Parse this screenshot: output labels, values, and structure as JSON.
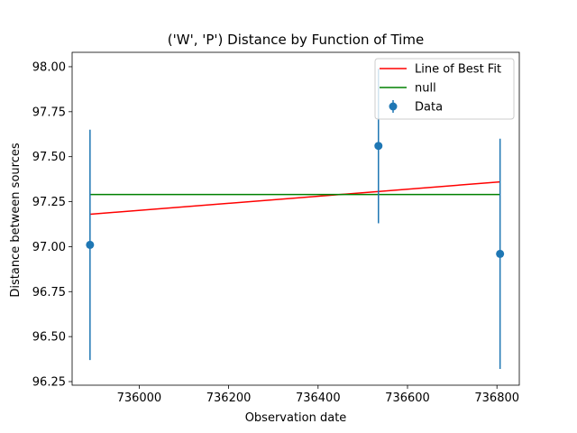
{
  "chart_data": {
    "type": "scatter",
    "title": "('W', 'P') Distance by Function of Time",
    "xlabel": "Observation date",
    "ylabel": "Distance between sources",
    "xlim": [
      735850,
      736850
    ],
    "ylim": [
      96.23,
      98.08
    ],
    "x_ticks": [
      736000,
      736200,
      736400,
      736600,
      736800
    ],
    "x_tick_labels": [
      "736000",
      "736200",
      "736400",
      "736600",
      "736800"
    ],
    "y_ticks": [
      96.25,
      96.5,
      96.75,
      97.0,
      97.25,
      97.5,
      97.75,
      98.0
    ],
    "y_tick_labels": [
      "96.25",
      "96.50",
      "96.75",
      "97.00",
      "97.25",
      "97.50",
      "97.75",
      "98.00"
    ],
    "grid": false,
    "legend_position": "top-right",
    "series": [
      {
        "name": "Line of Best Fit",
        "kind": "line",
        "color": "#ff0000",
        "x": [
          735890,
          736807
        ],
        "y": [
          97.18,
          97.36
        ]
      },
      {
        "name": "null",
        "kind": "line",
        "color": "#008000",
        "x": [
          735890,
          736807
        ],
        "y": [
          97.29,
          97.29
        ]
      },
      {
        "name": "Data",
        "kind": "errorbar",
        "color": "#1f77b4",
        "x": [
          735890,
          736535,
          736807
        ],
        "y": [
          97.01,
          97.56,
          96.96
        ],
        "yerr": [
          0.64,
          0.43,
          0.64
        ]
      }
    ]
  }
}
